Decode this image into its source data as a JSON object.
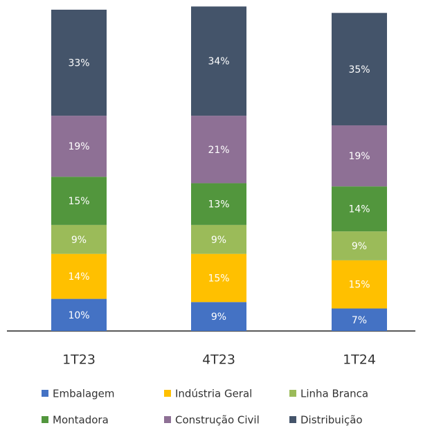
{
  "chart_data": {
    "type": "stacked_bar",
    "categories": [
      "1T23",
      "4T23",
      "1T24"
    ],
    "series": [
      {
        "name": "Embalagem",
        "color": "#4472c4",
        "values": [
          10,
          9,
          7
        ],
        "value_labels": [
          "10%",
          "9%",
          "7%"
        ]
      },
      {
        "name": "Indústria Geral",
        "color": "#ffc000",
        "values": [
          14,
          15,
          15
        ],
        "value_labels": [
          "14%",
          "15%",
          "15%"
        ]
      },
      {
        "name": "Linha Branca",
        "color": "#9bbb59",
        "values": [
          9,
          9,
          9
        ],
        "value_labels": [
          "9%",
          "9%",
          "9%"
        ]
      },
      {
        "name": "Montadora",
        "color": "#52963d",
        "values": [
          15,
          13,
          14
        ],
        "value_labels": [
          "15%",
          "13%",
          "14%"
        ]
      },
      {
        "name": "Construção Civil",
        "color": "#8e7095",
        "values": [
          19,
          21,
          19
        ],
        "value_labels": [
          "19%",
          "21%",
          "19%"
        ]
      },
      {
        "name": "Distribuição",
        "color": "#44546a",
        "values": [
          33,
          34,
          35
        ],
        "value_labels": [
          "33%",
          "34%",
          "35%"
        ]
      }
    ],
    "ylim": [
      0,
      100
    ]
  }
}
